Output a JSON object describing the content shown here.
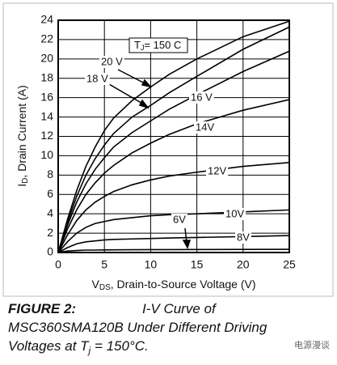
{
  "chart_data": {
    "type": "line",
    "annotation": [
      "T",
      "J",
      "= 150 C"
    ],
    "xlabel": [
      "V",
      "DS",
      ", Drain-to-Source Voltage (V)"
    ],
    "ylabel": [
      "I",
      "D",
      ", Drain Current (A)"
    ],
    "x": [
      0,
      1,
      2,
      3,
      4,
      5,
      6,
      8,
      10,
      12,
      15,
      20,
      25
    ],
    "series": [
      {
        "name": "20 V",
        "color": "#000000",
        "values": [
          0,
          3.4,
          6.4,
          8.9,
          10.9,
          12.6,
          13.9,
          15.7,
          17.1,
          18.4,
          20,
          22.3,
          23.9
        ]
      },
      {
        "name": "18 V",
        "color": "#000000",
        "values": [
          0,
          3.1,
          5.8,
          8,
          9.7,
          11.1,
          12.3,
          14,
          15.2,
          16.5,
          18.2,
          21,
          23.3
        ]
      },
      {
        "name": "16 V",
        "color": "#000000",
        "values": [
          0,
          2.8,
          5.2,
          7.1,
          8.6,
          9.8,
          10.9,
          12.4,
          13.6,
          14.8,
          16.3,
          18.7,
          20.8
        ]
      },
      {
        "name": "14V",
        "color": "#000000",
        "values": [
          0,
          2.4,
          4.4,
          6,
          7.2,
          8.2,
          9,
          10.3,
          11.3,
          12.2,
          13.3,
          14.7,
          15.8
        ]
      },
      {
        "name": "12V",
        "color": "#000000",
        "values": [
          0,
          1.8,
          3.3,
          4.4,
          5.2,
          5.8,
          6.3,
          7,
          7.5,
          7.9,
          8.3,
          8.9,
          9.3
        ]
      },
      {
        "name": "10V",
        "color": "#000000",
        "values": [
          0,
          1.1,
          2,
          2.6,
          3,
          3.2,
          3.4,
          3.6,
          3.8,
          3.9,
          4,
          4.2,
          4.4
        ]
      },
      {
        "name": "6V",
        "color": "#000000",
        "values": [
          0,
          0.15,
          0.2,
          0.25,
          0.25,
          0.27,
          0.28,
          0.29,
          0.3,
          0.3,
          0.31,
          0.32,
          0.33
        ]
      },
      {
        "name": "8V",
        "color": "#000000",
        "values": [
          0,
          0.5,
          0.9,
          1.1,
          1.2,
          1.3,
          1.35,
          1.4,
          1.45,
          1.5,
          1.55,
          1.65,
          1.75
        ]
      }
    ],
    "xlim": [
      0,
      25
    ],
    "xticks": [
      0,
      5,
      10,
      15,
      20,
      25
    ],
    "ylim": [
      0,
      24
    ],
    "yticks": [
      0,
      2,
      4,
      6,
      8,
      10,
      12,
      14,
      16,
      18,
      20,
      22,
      24
    ],
    "grid": true
  },
  "caption": {
    "figure": "FIGURE 2:",
    "lines": [
      "I-V Curve of",
      "MSC360SMA120B Under Different Driving",
      "Voltages at T",
      "j",
      " = 150°C."
    ]
  },
  "watermark": "电源漫谈"
}
